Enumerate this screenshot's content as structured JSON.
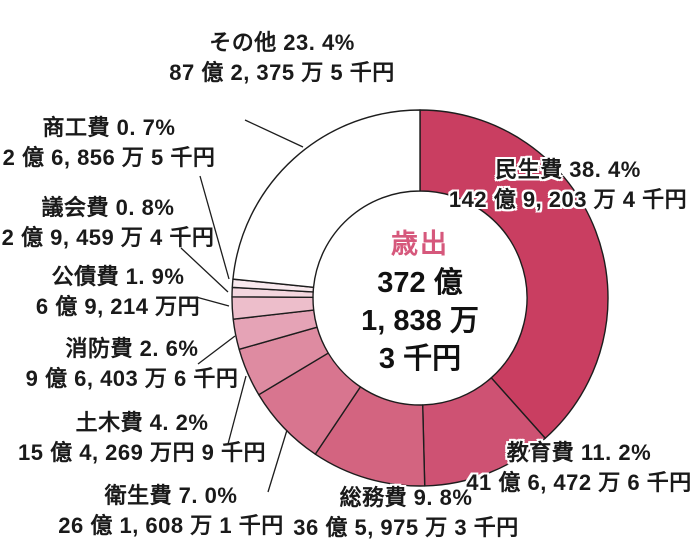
{
  "chart_data": {
    "type": "pie",
    "subtype": "donut",
    "title": "歳出",
    "legend_position": "none",
    "labels_style": "outside-with-leader-lines",
    "center": {
      "title": "歳出",
      "title_color": "#d6587c",
      "lines": [
        "372 億",
        "1, 838 万",
        "3 千円"
      ]
    },
    "segments": [
      {
        "name": "民生費",
        "percent": 38.4,
        "label": "民生費 38. 4%",
        "amount": "142 億 9, 203 万 4 千円",
        "color": "#c93e61"
      },
      {
        "name": "教育費",
        "percent": 11.2,
        "label": "教育費 11. 2%",
        "amount": "41 億 6, 472 万 6 千円",
        "color": "#ce5273"
      },
      {
        "name": "総務費",
        "percent": 9.8,
        "label": "総務費 9. 8%",
        "amount": "36 億 5, 975 万 3 千円",
        "color": "#d36480"
      },
      {
        "name": "衛生費",
        "percent": 7.0,
        "label": "衛生費 7. 0%",
        "amount": "26 億 1, 608 万 1 千円",
        "color": "#d8758f"
      },
      {
        "name": "土木費",
        "percent": 4.2,
        "label": "土木費 4. 2%",
        "amount": "15 億 4, 269 万円 9 千円",
        "color": "#de8ba1"
      },
      {
        "name": "消防費",
        "percent": 2.6,
        "label": "消防費 2. 6%",
        "amount": "9 億 6, 403 万 6 千円",
        "color": "#e5a3b6"
      },
      {
        "name": "公債費",
        "percent": 1.9,
        "label": "公債費 1. 9%",
        "amount": "6 億 9, 214 万円",
        "color": "#edbecb"
      },
      {
        "name": "議会費",
        "percent": 0.8,
        "label": "議会費 0. 8%",
        "amount": "2 億 9, 459 万 4 千円",
        "color": "#f3d6de"
      },
      {
        "name": "商工費",
        "percent": 0.7,
        "label": "商工費 0. 7%",
        "amount": "2 億 6, 856 万 5 千円",
        "color": "#f9e9ee"
      },
      {
        "name": "その他",
        "percent": 23.4,
        "label": "その他 23. 4%",
        "amount": "87 億 2, 375 万 5 千円",
        "color": "#ffffff"
      }
    ],
    "outline_color": "#1d1d1d"
  }
}
